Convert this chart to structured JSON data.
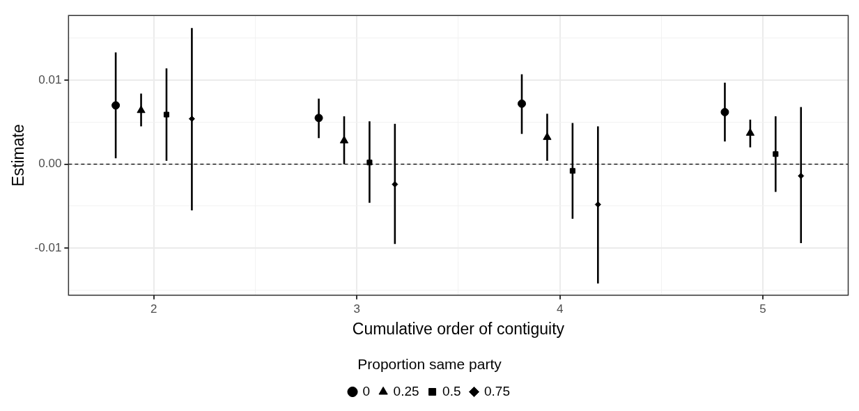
{
  "chart_data": {
    "type": "scatter",
    "xlabel": "Cumulative order of contiguity",
    "ylabel": "Estimate",
    "legend_title": "Proportion same party",
    "xlim": [
      1.58,
      5.42
    ],
    "xticks": [
      2,
      {
        "value": 2.5,
        "label": null
      },
      3,
      {
        "value": 3.5,
        "label": null
      },
      4,
      {
        "value": 4.5,
        "label": null
      },
      5
    ],
    "ylim": [
      -0.0156,
      0.0177
    ],
    "yticks": [
      {
        "value": -0.015,
        "label": null
      },
      -0.01,
      {
        "value": -0.005,
        "label": null
      },
      {
        "value": 0,
        "label": "0.00"
      },
      {
        "value": 0.005,
        "label": null
      },
      0.01,
      {
        "value": 0.015,
        "label": null
      }
    ],
    "grid": true,
    "legend": "bottom",
    "ref_lines": [
      {
        "axis": "y",
        "value": 0,
        "color": "#000000",
        "line_style": "dashed"
      }
    ],
    "series": [
      {
        "name": "0",
        "color": "#000000",
        "marker": "circle",
        "x": [
          1.8125,
          2.8125,
          3.8125,
          4.8125
        ],
        "values": [
          0.007,
          0.0055,
          0.0072,
          0.0062
        ],
        "errors": [
          [
            0.0007,
            0.0133
          ],
          [
            0.0031,
            0.0078
          ],
          [
            0.0036,
            0.0107
          ],
          [
            0.0027,
            0.0097
          ]
        ]
      },
      {
        "name": "0.25",
        "color": "#000000",
        "marker": "triangle",
        "x": [
          1.9375,
          2.9375,
          3.9375,
          4.9375
        ],
        "values": [
          0.0064,
          0.0028,
          0.0032,
          0.0037
        ],
        "errors": [
          [
            0.0045,
            0.0084
          ],
          [
            0.0,
            0.0057
          ],
          [
            0.0004,
            0.006
          ],
          [
            0.002,
            0.0053
          ]
        ]
      },
      {
        "name": "0.5",
        "color": "#000000",
        "marker": "square",
        "x": [
          2.0625,
          3.0625,
          4.0625,
          5.0625
        ],
        "values": [
          0.0059,
          0.0002,
          -0.0008,
          0.0012
        ],
        "errors": [
          [
            0.0004,
            0.0114
          ],
          [
            -0.0046,
            0.0051
          ],
          [
            -0.0065,
            0.0049
          ],
          [
            -0.0033,
            0.0057
          ]
        ]
      },
      {
        "name": "0.75",
        "color": "#000000",
        "marker": "diamond",
        "x": [
          2.1875,
          3.1875,
          4.1875,
          5.1875
        ],
        "values": [
          0.0054,
          -0.0024,
          -0.0048,
          -0.0014
        ],
        "errors": [
          [
            -0.0055,
            0.0162
          ],
          [
            -0.0095,
            0.0048
          ],
          [
            -0.0142,
            0.0045
          ],
          [
            -0.0094,
            0.0068
          ]
        ]
      }
    ]
  }
}
